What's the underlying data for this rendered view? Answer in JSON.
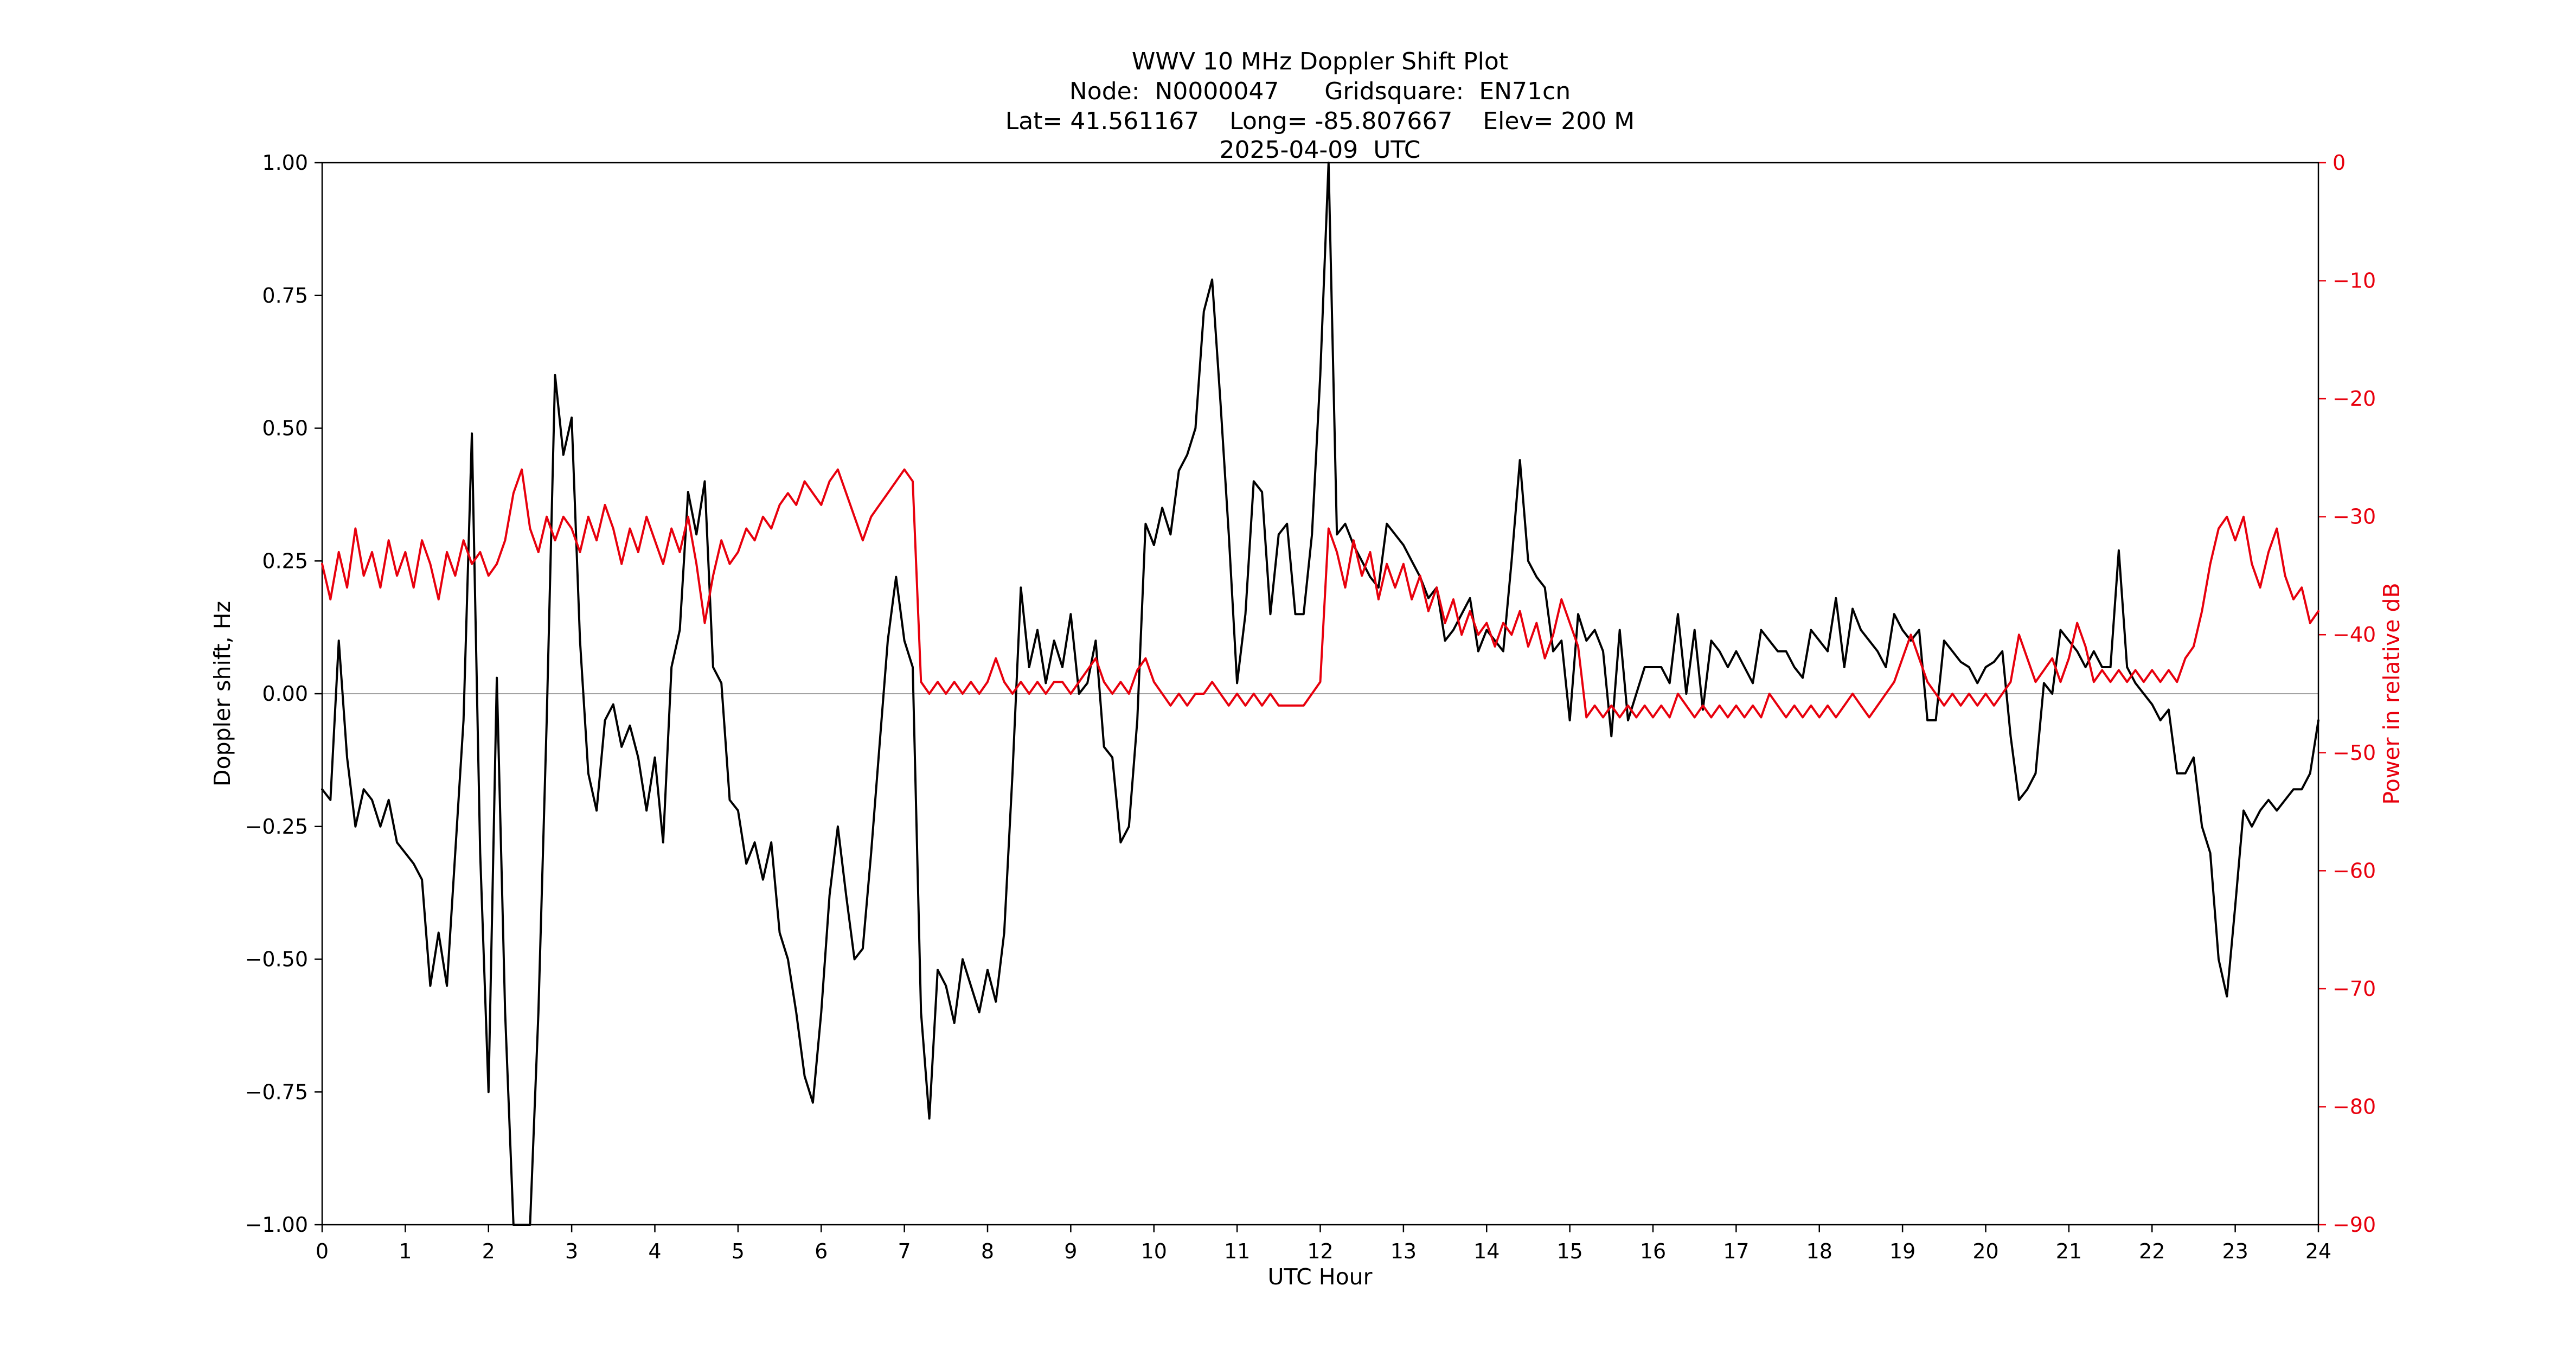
{
  "chart_data": {
    "type": "line",
    "title_lines": [
      "WWV 10 MHz Doppler Shift Plot",
      "Node:  N0000047      Gridsquare:  EN71cn",
      "Lat= 41.561167    Long= -85.807667    Elev= 200 M",
      "2025-04-09  UTC"
    ],
    "xlabel": "UTC Hour",
    "ylabel_left": "Doppler shift, Hz",
    "ylabel_right": "Power in relative dB",
    "xlim": [
      0,
      24
    ],
    "ylim_left": [
      -1.0,
      1.0
    ],
    "ylim_right": [
      -90,
      0
    ],
    "grid": "zero-line-only",
    "background": "#ffffff",
    "axis_color": "#000000",
    "zero_line": {
      "value": 0.0,
      "color": "#a3a3a3"
    },
    "x_tick_values": [
      0,
      1,
      2,
      3,
      4,
      5,
      6,
      7,
      8,
      9,
      10,
      11,
      12,
      13,
      14,
      15,
      16,
      17,
      18,
      19,
      20,
      21,
      22,
      23,
      24
    ],
    "x_tick_labels": [
      "0",
      "1",
      "2",
      "3",
      "4",
      "5",
      "6",
      "7",
      "8",
      "9",
      "10",
      "11",
      "12",
      "13",
      "14",
      "15",
      "16",
      "17",
      "18",
      "19",
      "20",
      "21",
      "22",
      "23",
      "24"
    ],
    "y_left_tick_values": [
      1.0,
      0.75,
      0.5,
      0.25,
      0.0,
      -0.25,
      -0.5,
      -0.75,
      -1.0
    ],
    "y_left_tick_labels": [
      "1.00",
      "0.75",
      "0.50",
      "0.25",
      "0.00",
      "−0.25",
      "−0.50",
      "−0.75",
      "−1.00"
    ],
    "y_right_tick_values": [
      0,
      -10,
      -20,
      -30,
      -40,
      -50,
      -60,
      -70,
      -80,
      -90
    ],
    "y_right_tick_labels": [
      "0",
      "−10",
      "−20",
      "−30",
      "−40",
      "−50",
      "−60",
      "−70",
      "−80",
      "−90"
    ],
    "series": [
      {
        "name": "Doppler shift",
        "axis": "left",
        "unit": "Hz",
        "color": "#000000",
        "x_start": 0,
        "x_step": 0.1,
        "values": [
          -0.18,
          -0.2,
          0.1,
          -0.12,
          -0.25,
          -0.18,
          -0.2,
          -0.25,
          -0.2,
          -0.28,
          -0.3,
          -0.32,
          -0.35,
          -0.55,
          -0.45,
          -0.55,
          -0.3,
          -0.05,
          0.49,
          -0.3,
          -0.75,
          0.03,
          -0.6,
          -1.0,
          -1.0,
          -1.0,
          -0.6,
          -0.05,
          0.6,
          0.45,
          0.52,
          0.1,
          -0.15,
          -0.22,
          -0.05,
          -0.02,
          -0.1,
          -0.06,
          -0.12,
          -0.22,
          -0.12,
          -0.28,
          0.05,
          0.12,
          0.38,
          0.3,
          0.4,
          0.05,
          0.02,
          -0.2,
          -0.22,
          -0.32,
          -0.28,
          -0.35,
          -0.28,
          -0.45,
          -0.5,
          -0.6,
          -0.72,
          -0.77,
          -0.6,
          -0.38,
          -0.25,
          -0.38,
          -0.5,
          -0.48,
          -0.3,
          -0.1,
          0.1,
          0.22,
          0.1,
          0.05,
          -0.6,
          -0.8,
          -0.52,
          -0.55,
          -0.62,
          -0.5,
          -0.55,
          -0.6,
          -0.52,
          -0.58,
          -0.45,
          -0.15,
          0.2,
          0.05,
          0.12,
          0.02,
          0.1,
          0.05,
          0.15,
          0.0,
          0.02,
          0.1,
          -0.1,
          -0.12,
          -0.28,
          -0.25,
          -0.05,
          0.32,
          0.28,
          0.35,
          0.3,
          0.42,
          0.45,
          0.5,
          0.72,
          0.78,
          0.55,
          0.3,
          0.02,
          0.15,
          0.4,
          0.38,
          0.15,
          0.3,
          0.32,
          0.15,
          0.15,
          0.3,
          0.6,
          1.0,
          0.3,
          0.32,
          0.28,
          0.25,
          0.22,
          0.2,
          0.32,
          0.3,
          0.28,
          0.25,
          0.22,
          0.18,
          0.2,
          0.1,
          0.12,
          0.15,
          0.18,
          0.08,
          0.12,
          0.1,
          0.08,
          0.25,
          0.44,
          0.25,
          0.22,
          0.2,
          0.08,
          0.1,
          -0.05,
          0.15,
          0.1,
          0.12,
          0.08,
          -0.08,
          0.12,
          -0.05,
          0.0,
          0.05,
          0.05,
          0.05,
          0.02,
          0.15,
          0.0,
          0.12,
          -0.03,
          0.1,
          0.08,
          0.05,
          0.08,
          0.05,
          0.02,
          0.12,
          0.1,
          0.08,
          0.08,
          0.05,
          0.03,
          0.12,
          0.1,
          0.08,
          0.18,
          0.05,
          0.16,
          0.12,
          0.1,
          0.08,
          0.05,
          0.15,
          0.12,
          0.1,
          0.12,
          -0.05,
          -0.05,
          0.1,
          0.08,
          0.06,
          0.05,
          0.02,
          0.05,
          0.06,
          0.08,
          -0.08,
          -0.2,
          -0.18,
          -0.15,
          0.02,
          0.0,
          0.12,
          0.1,
          0.08,
          0.05,
          0.08,
          0.05,
          0.05,
          0.27,
          0.05,
          0.02,
          0.0,
          -0.02,
          -0.05,
          -0.03,
          -0.15,
          -0.15,
          -0.12,
          -0.25,
          -0.3,
          -0.5,
          -0.57,
          -0.4,
          -0.22,
          -0.25,
          -0.22,
          -0.2,
          -0.22,
          -0.2,
          -0.18,
          -0.18,
          -0.15,
          -0.05
        ]
      },
      {
        "name": "Relative power",
        "axis": "right",
        "unit": "dB",
        "color": "#e8000d",
        "x_start": 0,
        "x_step": 0.1,
        "values": [
          -34,
          -37,
          -33,
          -36,
          -31,
          -35,
          -33,
          -36,
          -32,
          -35,
          -33,
          -36,
          -32,
          -34,
          -37,
          -33,
          -35,
          -32,
          -34,
          -33,
          -35,
          -34,
          -32,
          -28,
          -26,
          -31,
          -33,
          -30,
          -32,
          -30,
          -31,
          -33,
          -30,
          -32,
          -29,
          -31,
          -34,
          -31,
          -33,
          -30,
          -32,
          -34,
          -31,
          -33,
          -30,
          -34,
          -39,
          -35,
          -32,
          -34,
          -33,
          -31,
          -32,
          -30,
          -31,
          -29,
          -28,
          -29,
          -27,
          -28,
          -29,
          -27,
          -26,
          -28,
          -30,
          -32,
          -30,
          -29,
          -28,
          -27,
          -26,
          -27,
          -44,
          -45,
          -44,
          -45,
          -44,
          -45,
          -44,
          -45,
          -44,
          -42,
          -44,
          -45,
          -44,
          -45,
          -44,
          -45,
          -44,
          -44,
          -45,
          -44,
          -43,
          -42,
          -44,
          -45,
          -44,
          -45,
          -43,
          -42,
          -44,
          -45,
          -46,
          -45,
          -46,
          -45,
          -45,
          -44,
          -45,
          -46,
          -45,
          -46,
          -45,
          -46,
          -45,
          -46,
          -46,
          -46,
          -46,
          -45,
          -44,
          -31,
          -33,
          -36,
          -32,
          -35,
          -33,
          -37,
          -34,
          -36,
          -34,
          -37,
          -35,
          -38,
          -36,
          -39,
          -37,
          -40,
          -38,
          -40,
          -39,
          -41,
          -39,
          -40,
          -38,
          -41,
          -39,
          -42,
          -40,
          -37,
          -39,
          -41,
          -47,
          -46,
          -47,
          -46,
          -47,
          -46,
          -47,
          -46,
          -47,
          -46,
          -47,
          -45,
          -46,
          -47,
          -46,
          -47,
          -46,
          -47,
          -46,
          -47,
          -46,
          -47,
          -45,
          -46,
          -47,
          -46,
          -47,
          -46,
          -47,
          -46,
          -47,
          -46,
          -45,
          -46,
          -47,
          -46,
          -45,
          -44,
          -42,
          -40,
          -42,
          -44,
          -45,
          -46,
          -45,
          -46,
          -45,
          -46,
          -45,
          -46,
          -45,
          -44,
          -40,
          -42,
          -44,
          -43,
          -42,
          -44,
          -42,
          -39,
          -41,
          -44,
          -43,
          -44,
          -43,
          -44,
          -43,
          -44,
          -43,
          -44,
          -43,
          -44,
          -42,
          -41,
          -38,
          -34,
          -31,
          -30,
          -32,
          -30,
          -34,
          -36,
          -33,
          -31,
          -35,
          -37,
          -36,
          -39,
          -38
        ]
      }
    ]
  }
}
